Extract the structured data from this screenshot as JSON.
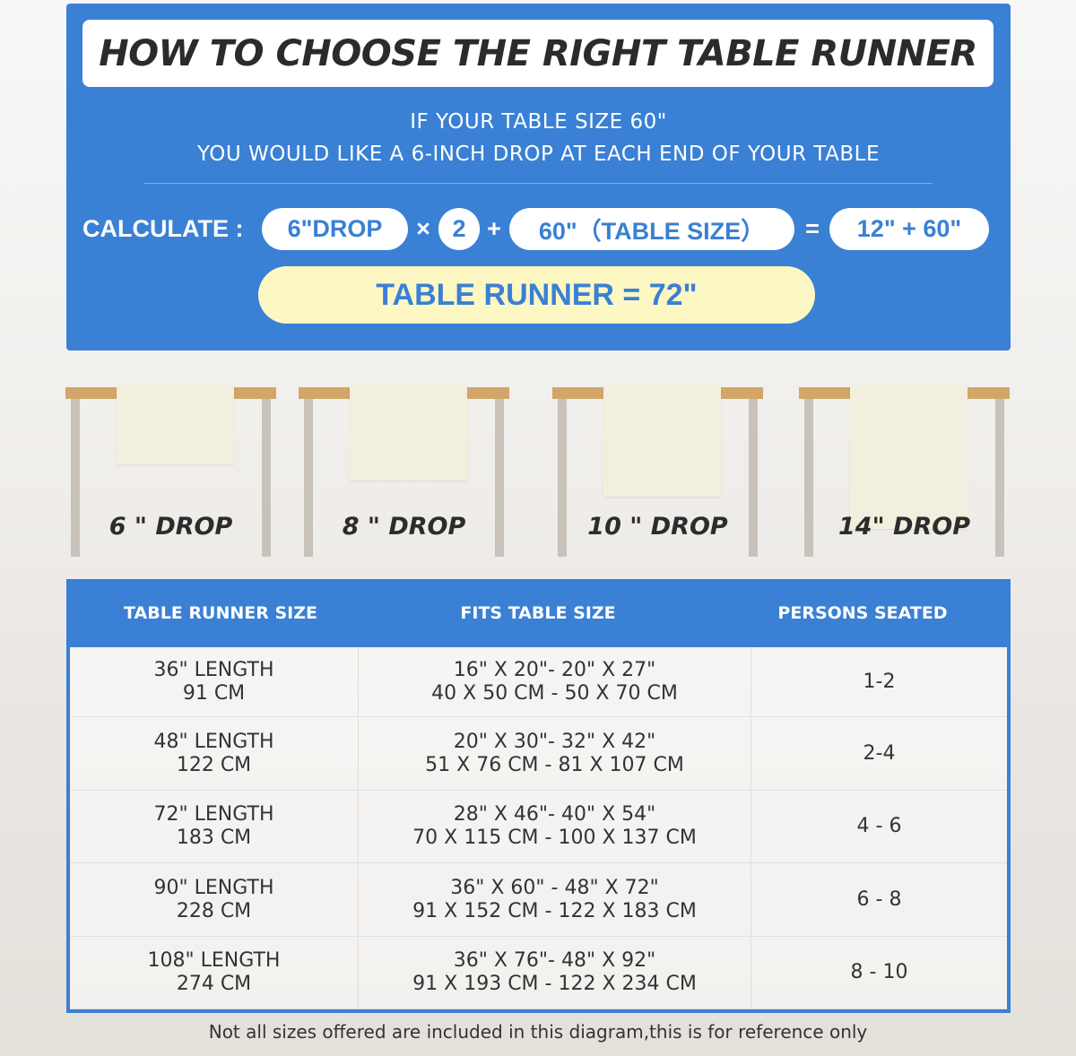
{
  "title": "HOW TO CHOOSE THE RIGHT TABLE RUNNER",
  "intro": {
    "line1": "IF YOUR TABLE SIZE 60\"",
    "line2": "YOU WOULD LIKE A 6-INCH DROP AT EACH END OF YOUR TABLE"
  },
  "calc": {
    "label": "CALCULATE :",
    "drop": "6\"DROP",
    "times": "×",
    "multiplier": "2",
    "plus": "+",
    "table_size": "60\"（TABLE SIZE）",
    "equals": "=",
    "sum": "12\" + 60\"",
    "result": "TABLE RUNNER = 72\""
  },
  "drops": [
    {
      "label": "6 \" DROP",
      "inches": 6
    },
    {
      "label": "8 \" DROP",
      "inches": 8
    },
    {
      "label": "10 \" DROP",
      "inches": 10
    },
    {
      "label": "14\" DROP",
      "inches": 14
    }
  ],
  "colors": {
    "accent": "#3a80d4",
    "highlight": "#fdf7c3",
    "table_top": "#d2a668",
    "table_leg": "#c8c2bb",
    "runner": "#f3efde"
  },
  "table": {
    "headers": [
      "TABLE RUNNER SIZE",
      "FITS TABLE SIZE",
      "PERSONS SEATED"
    ],
    "rows": [
      {
        "size": [
          "36\" LENGTH",
          "91 CM"
        ],
        "fits": [
          "16\" X 20\"- 20\" X 27\"",
          "40 X 50 CM - 50 X 70 CM"
        ],
        "persons": "1-2"
      },
      {
        "size": [
          "48\" LENGTH",
          "122 CM"
        ],
        "fits": [
          "20\" X 30\"- 32\" X 42\"",
          "51 X 76 CM - 81 X 107 CM"
        ],
        "persons": "2-4"
      },
      {
        "size": [
          "72\" LENGTH",
          "183 CM"
        ],
        "fits": [
          "28\" X 46\"- 40\" X 54\"",
          "70 X 115 CM - 100 X 137 CM"
        ],
        "persons": "4 - 6"
      },
      {
        "size": [
          "90\" LENGTH",
          "228 CM"
        ],
        "fits": [
          "36\" X 60\" - 48\" X 72\"",
          "91 X 152 CM - 122 X 183 CM"
        ],
        "persons": "6 - 8"
      },
      {
        "size": [
          "108\" LENGTH",
          "274 CM"
        ],
        "fits": [
          "36\" X 76\"- 48\" X 92\"",
          "91 X 193 CM - 122 X 234 CM"
        ],
        "persons": "8 - 10"
      }
    ]
  },
  "footer": "Not all sizes offered are included in this diagram,this is for reference only"
}
